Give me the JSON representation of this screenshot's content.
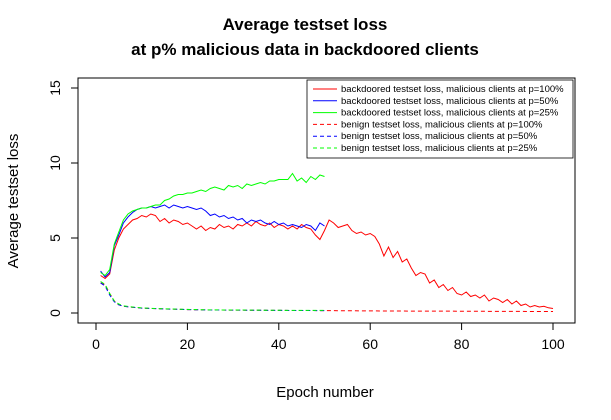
{
  "chart_data": {
    "type": "line",
    "title_line1": "Average testset loss",
    "title_line2": "at p% malicious data in backdoored clients",
    "xlabel": "Epoch number",
    "ylabel": "Average testset loss",
    "xlim": [
      0,
      100
    ],
    "ylim": [
      0,
      15
    ],
    "xticks": [
      "0",
      "20",
      "40",
      "60",
      "80",
      "100"
    ],
    "yticks": [
      "0",
      "5",
      "10",
      "15"
    ],
    "grid": false,
    "legend_position": "top-right",
    "series": [
      {
        "name": "backdoored testset loss, malicious clients at p=100%",
        "color": "#ff0000",
        "dash": "solid",
        "x": [
          1,
          2,
          3,
          4,
          5,
          6,
          7,
          8,
          9,
          10,
          11,
          12,
          13,
          14,
          15,
          16,
          17,
          18,
          19,
          20,
          21,
          22,
          23,
          24,
          25,
          26,
          27,
          28,
          29,
          30,
          31,
          32,
          33,
          34,
          35,
          36,
          37,
          38,
          39,
          40,
          41,
          42,
          43,
          44,
          45,
          46,
          47,
          48,
          49,
          50,
          51,
          52,
          53,
          54,
          55,
          56,
          57,
          58,
          59,
          60,
          61,
          62,
          63,
          64,
          65,
          66,
          67,
          68,
          69,
          70,
          71,
          72,
          73,
          74,
          75,
          76,
          77,
          78,
          79,
          80,
          81,
          82,
          83,
          84,
          85,
          86,
          87,
          88,
          89,
          90,
          91,
          92,
          93,
          94,
          95,
          96,
          97,
          98,
          99,
          100
        ],
        "values": [
          2.5,
          2.3,
          2.6,
          4.2,
          5.0,
          5.6,
          5.9,
          6.2,
          6.3,
          6.5,
          6.4,
          6.6,
          6.5,
          6.1,
          6.3,
          6.0,
          6.2,
          6.1,
          5.9,
          6.0,
          5.8,
          5.6,
          5.8,
          5.5,
          5.7,
          5.6,
          5.9,
          5.7,
          5.8,
          5.6,
          5.9,
          5.8,
          6.0,
          5.8,
          6.1,
          5.9,
          5.8,
          6.0,
          5.7,
          5.9,
          5.8,
          5.6,
          5.8,
          5.6,
          5.9,
          5.7,
          5.6,
          5.2,
          4.9,
          5.5,
          6.2,
          6.0,
          5.7,
          5.8,
          5.9,
          5.5,
          5.3,
          5.4,
          5.2,
          5.3,
          5.1,
          4.6,
          3.8,
          4.4,
          3.7,
          4.1,
          3.4,
          3.6,
          3.0,
          2.5,
          2.7,
          2.6,
          2.0,
          2.2,
          1.7,
          1.9,
          1.5,
          1.7,
          1.3,
          1.2,
          1.4,
          1.1,
          1.2,
          1.0,
          1.2,
          0.8,
          1.0,
          0.9,
          0.7,
          0.9,
          0.6,
          0.8,
          0.5,
          0.6,
          0.4,
          0.5,
          0.4,
          0.45,
          0.35,
          0.3
        ]
      },
      {
        "name": "backdoored testset loss, malicious clients at p=50%",
        "color": "#0000ff",
        "dash": "solid",
        "x": [
          1,
          2,
          3,
          4,
          5,
          6,
          7,
          8,
          9,
          10,
          11,
          12,
          13,
          14,
          15,
          16,
          17,
          18,
          19,
          20,
          21,
          22,
          23,
          24,
          25,
          26,
          27,
          28,
          29,
          30,
          31,
          32,
          33,
          34,
          35,
          36,
          37,
          38,
          39,
          40,
          41,
          42,
          43,
          44,
          45,
          46,
          47,
          48,
          49,
          50
        ],
        "values": [
          2.8,
          2.4,
          2.7,
          4.5,
          5.2,
          6.0,
          6.4,
          6.7,
          6.9,
          7.0,
          7.0,
          7.1,
          7.0,
          7.1,
          7.2,
          7.0,
          7.2,
          7.1,
          7.0,
          7.1,
          7.0,
          6.9,
          7.0,
          6.8,
          6.5,
          6.6,
          6.4,
          6.5,
          6.3,
          6.4,
          6.2,
          6.3,
          6.0,
          6.2,
          6.1,
          6.2,
          6.0,
          5.9,
          6.1,
          5.9,
          6.0,
          5.8,
          5.9,
          5.8,
          5.7,
          5.9,
          5.8,
          5.5,
          6.0,
          5.8
        ]
      },
      {
        "name": "backdoored testset loss, malicious clients at p=25%",
        "color": "#00ff00",
        "dash": "solid",
        "x": [
          1,
          2,
          3,
          4,
          5,
          6,
          7,
          8,
          9,
          10,
          11,
          12,
          13,
          14,
          15,
          16,
          17,
          18,
          19,
          20,
          21,
          22,
          23,
          24,
          25,
          26,
          27,
          28,
          29,
          30,
          31,
          32,
          33,
          34,
          35,
          36,
          37,
          38,
          39,
          40,
          41,
          42,
          43,
          44,
          45,
          46,
          47,
          48,
          49,
          50
        ],
        "values": [
          2.7,
          2.5,
          2.9,
          4.6,
          5.4,
          6.2,
          6.6,
          6.8,
          6.9,
          7.0,
          7.0,
          7.1,
          7.2,
          7.2,
          7.5,
          7.6,
          7.8,
          7.9,
          7.9,
          8.0,
          8.0,
          8.1,
          8.2,
          8.1,
          8.3,
          8.4,
          8.3,
          8.2,
          8.5,
          8.4,
          8.5,
          8.3,
          8.6,
          8.5,
          8.6,
          8.7,
          8.6,
          8.8,
          8.8,
          8.9,
          8.9,
          8.9,
          9.3,
          8.8,
          9.0,
          8.7,
          9.1,
          8.9,
          9.2,
          9.1
        ]
      },
      {
        "name": "benign testset loss, malicious clients at p=100%",
        "color": "#ff0000",
        "dash": "dashed",
        "x": [
          1,
          2,
          3,
          4,
          5,
          6,
          8,
          10,
          12,
          15,
          20,
          25,
          30,
          40,
          50,
          60,
          70,
          80,
          90,
          100
        ],
        "values": [
          2.0,
          1.9,
          1.3,
          0.8,
          0.55,
          0.45,
          0.38,
          0.33,
          0.3,
          0.27,
          0.23,
          0.2,
          0.19,
          0.17,
          0.16,
          0.14,
          0.13,
          0.12,
          0.11,
          0.1
        ]
      },
      {
        "name": "benign testset loss, malicious clients at p=50%",
        "color": "#0000ff",
        "dash": "dashed",
        "x": [
          1,
          2,
          3,
          4,
          5,
          6,
          8,
          10,
          12,
          15,
          20,
          25,
          30,
          40,
          50
        ],
        "values": [
          2.0,
          1.8,
          1.2,
          0.75,
          0.55,
          0.45,
          0.38,
          0.33,
          0.3,
          0.27,
          0.23,
          0.2,
          0.19,
          0.17,
          0.16
        ]
      },
      {
        "name": "benign testset loss, malicious clients at p=25%",
        "color": "#00ff00",
        "dash": "dashed",
        "x": [
          1,
          2,
          3,
          4,
          5,
          6,
          8,
          10,
          12,
          15,
          20,
          25,
          30,
          40,
          50
        ],
        "values": [
          2.1,
          1.9,
          1.3,
          0.8,
          0.6,
          0.48,
          0.4,
          0.34,
          0.31,
          0.28,
          0.24,
          0.21,
          0.2,
          0.18,
          0.17
        ]
      }
    ]
  }
}
